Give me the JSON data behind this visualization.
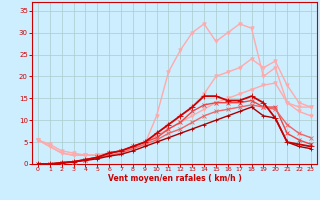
{
  "background_color": "#cceeff",
  "grid_color": "#aacccc",
  "xlabel": "Vent moyen/en rafales ( km/h )",
  "xlabel_color": "#cc0000",
  "tick_color": "#cc0000",
  "xlim": [
    -0.5,
    23.5
  ],
  "ylim": [
    0,
    37
  ],
  "xticks": [
    0,
    1,
    2,
    3,
    4,
    5,
    6,
    7,
    8,
    9,
    10,
    11,
    12,
    13,
    14,
    15,
    16,
    17,
    18,
    19,
    20,
    21,
    22,
    23
  ],
  "yticks": [
    0,
    5,
    10,
    15,
    20,
    25,
    30,
    35
  ],
  "series": [
    {
      "x": [
        0,
        1,
        2,
        3,
        4,
        5,
        6,
        7,
        8,
        9,
        10,
        11,
        12,
        13,
        14,
        15,
        16,
        17,
        18,
        19,
        20,
        21,
        22,
        23
      ],
      "y": [
        5.5,
        4.5,
        3,
        2.5,
        2,
        2,
        2.5,
        3,
        3.5,
        4.5,
        11,
        21,
        26,
        30,
        32,
        28,
        30,
        32,
        31,
        20,
        22,
        14,
        12,
        11
      ],
      "color": "#ffaaaa",
      "lw": 1.0,
      "marker": "v",
      "ms": 2.5,
      "zorder": 2
    },
    {
      "x": [
        0,
        1,
        2,
        3,
        4,
        5,
        6,
        7,
        8,
        9,
        10,
        11,
        12,
        13,
        14,
        15,
        16,
        17,
        18,
        19,
        20,
        21,
        22,
        23
      ],
      "y": [
        5.5,
        4,
        2.5,
        2,
        2,
        2,
        2.5,
        3,
        3.5,
        4.5,
        7,
        9,
        11,
        13,
        16,
        20,
        21,
        22,
        24,
        22,
        23.5,
        18,
        14,
        13
      ],
      "color": "#ffaaaa",
      "lw": 1.0,
      "marker": "v",
      "ms": 2.5,
      "zorder": 2
    },
    {
      "x": [
        0,
        1,
        2,
        3,
        4,
        5,
        6,
        7,
        8,
        9,
        10,
        11,
        12,
        13,
        14,
        15,
        16,
        17,
        18,
        19,
        20,
        21,
        22,
        23
      ],
      "y": [
        5.5,
        4,
        2.5,
        2,
        2,
        2,
        2.5,
        3,
        3.5,
        4.5,
        6.5,
        8,
        9.5,
        11,
        12.5,
        14,
        15,
        16,
        17,
        18,
        18.5,
        14,
        13,
        13
      ],
      "color": "#ffaaaa",
      "lw": 1.0,
      "marker": "v",
      "ms": 2.5,
      "zorder": 2
    },
    {
      "x": [
        0,
        1,
        2,
        3,
        4,
        5,
        6,
        7,
        8,
        9,
        10,
        11,
        12,
        13,
        14,
        15,
        16,
        17,
        18,
        19,
        20,
        21,
        22,
        23
      ],
      "y": [
        0,
        0,
        0.3,
        0.5,
        1,
        1.5,
        2.5,
        3,
        4,
        5,
        7,
        9,
        11,
        13,
        15.5,
        15.5,
        14.5,
        14.5,
        15.5,
        14,
        10.5,
        5,
        4.5,
        4
      ],
      "color": "#cc0000",
      "lw": 1.3,
      "marker": "+",
      "ms": 4,
      "zorder": 4
    },
    {
      "x": [
        0,
        1,
        2,
        3,
        4,
        5,
        6,
        7,
        8,
        9,
        10,
        11,
        12,
        13,
        14,
        15,
        16,
        17,
        18,
        19,
        20,
        21,
        22,
        23
      ],
      "y": [
        0,
        0,
        0.3,
        0.5,
        1,
        1.5,
        2.5,
        3,
        4,
        5,
        6,
        8,
        9.5,
        12,
        13.5,
        14,
        14,
        14,
        14.5,
        13,
        13,
        7,
        5.5,
        4.5
      ],
      "color": "#ee4444",
      "lw": 1.0,
      "marker": "x",
      "ms": 3,
      "zorder": 3
    },
    {
      "x": [
        0,
        1,
        2,
        3,
        4,
        5,
        6,
        7,
        8,
        9,
        10,
        11,
        12,
        13,
        14,
        15,
        16,
        17,
        18,
        19,
        20,
        21,
        22,
        23
      ],
      "y": [
        0,
        0,
        0.3,
        0.5,
        1,
        1.5,
        2,
        2.5,
        3.5,
        4.5,
        5.5,
        7,
        8,
        9.5,
        11,
        12,
        12.5,
        13,
        13.5,
        13,
        12.5,
        9,
        7,
        6
      ],
      "color": "#ee6666",
      "lw": 1.0,
      "marker": "x",
      "ms": 3,
      "zorder": 3
    },
    {
      "x": [
        0,
        1,
        2,
        3,
        4,
        5,
        6,
        7,
        8,
        9,
        10,
        11,
        12,
        13,
        14,
        15,
        16,
        17,
        18,
        19,
        20,
        21,
        22,
        23
      ],
      "y": [
        0,
        0,
        0.2,
        0.5,
        0.8,
        1.2,
        1.8,
        2.2,
        3,
        4,
        5,
        6,
        7,
        8,
        9,
        10,
        11,
        12,
        13,
        11,
        10.5,
        5,
        4,
        3.5
      ],
      "color": "#aa0000",
      "lw": 1.0,
      "marker": "+",
      "ms": 3,
      "zorder": 3
    }
  ]
}
